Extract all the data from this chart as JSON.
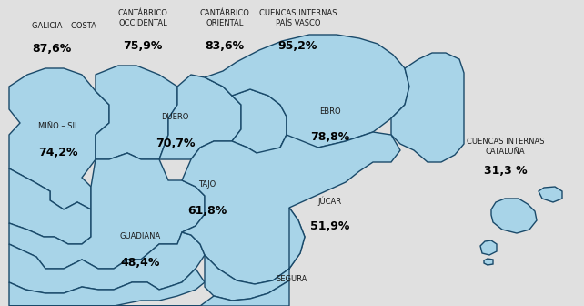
{
  "background_color": "#e0e0e0",
  "map_fill_color": "#a8d4e8",
  "map_edge_color": "#1a4a6a",
  "map_edge_width": 1.0,
  "label_name_color": "#1a1a1a",
  "label_value_color": "#000000",
  "name_fontsize": 6.0,
  "value_fontsize": 9.0,
  "figsize": [
    6.42,
    3.36
  ],
  "dpi": 100,
  "labels": [
    {
      "name": "GALICIA – COSTA",
      "value": "87,6%",
      "nx": 0.055,
      "ny": 0.93,
      "vx": 0.055,
      "vy": 0.86,
      "ha": "left"
    },
    {
      "name": "CANTÁBRICO\nOCCIDENTAL",
      "value": "75,9%",
      "nx": 0.245,
      "ny": 0.97,
      "vx": 0.245,
      "vy": 0.87,
      "ha": "center"
    },
    {
      "name": "CANTÁBRICO\nORIENTAL",
      "value": "83,6%",
      "nx": 0.385,
      "ny": 0.97,
      "vx": 0.385,
      "vy": 0.87,
      "ha": "center"
    },
    {
      "name": "CUENCAS INTERNAS\nPAÍS VASCO",
      "value": "95,2%",
      "nx": 0.51,
      "ny": 0.97,
      "vx": 0.51,
      "vy": 0.87,
      "ha": "center"
    },
    {
      "name": "MIÑO – SIL",
      "value": "74,2%",
      "nx": 0.065,
      "ny": 0.6,
      "vx": 0.065,
      "vy": 0.52,
      "ha": "left"
    },
    {
      "name": "DUERO",
      "value": "70,7%",
      "nx": 0.3,
      "ny": 0.63,
      "vx": 0.3,
      "vy": 0.55,
      "ha": "center"
    },
    {
      "name": "EBRO",
      "value": "78,8%",
      "nx": 0.565,
      "ny": 0.65,
      "vx": 0.565,
      "vy": 0.57,
      "ha": "center"
    },
    {
      "name": "CUENCAS INTERNAS\nCATALUÑA",
      "value": "31,3 %",
      "nx": 0.865,
      "ny": 0.55,
      "vx": 0.865,
      "vy": 0.46,
      "ha": "center"
    },
    {
      "name": "TAJO",
      "value": "61,8%",
      "nx": 0.355,
      "ny": 0.41,
      "vx": 0.355,
      "vy": 0.33,
      "ha": "center"
    },
    {
      "name": "JÚCAR",
      "value": "51,9%",
      "nx": 0.565,
      "ny": 0.36,
      "vx": 0.565,
      "vy": 0.28,
      "ha": "center"
    },
    {
      "name": "GUADIANA",
      "value": "48,4%",
      "nx": 0.24,
      "ny": 0.24,
      "vx": 0.24,
      "vy": 0.16,
      "ha": "center"
    },
    {
      "name": "SEGURA",
      "value": "",
      "nx": 0.5,
      "ny": 0.1,
      "vx": 0.5,
      "vy": 0.03,
      "ha": "center"
    }
  ]
}
